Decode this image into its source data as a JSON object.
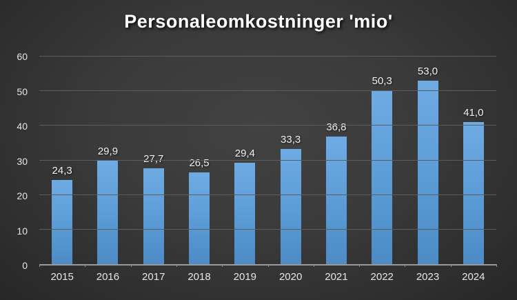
{
  "chart_data": {
    "type": "bar",
    "title": "Personaleomkostninger 'mio'",
    "categories": [
      "2015",
      "2016",
      "2017",
      "2018",
      "2019",
      "2020",
      "2021",
      "2022",
      "2023",
      "2024"
    ],
    "values": [
      24.3,
      29.9,
      27.7,
      26.5,
      29.4,
      33.3,
      36.8,
      50.3,
      53.0,
      41.0
    ],
    "value_labels": [
      "24,3",
      "29,9",
      "27,7",
      "26,5",
      "29,4",
      "33,3",
      "36,8",
      "50,3",
      "53,0",
      "41,0"
    ],
    "y_ticks": [
      0,
      10,
      20,
      30,
      40,
      50,
      60
    ],
    "ylim": [
      0,
      60
    ],
    "xlabel": "",
    "ylabel": "",
    "grid": true,
    "legend_position": "none",
    "colors": {
      "background": "#3a3a3a",
      "bar": "#5b9bd5",
      "gridline": "#5d5d5d",
      "axis_line": "#9a9a9a",
      "text": "#e6e6e6",
      "title_text": "#ffffff"
    }
  }
}
